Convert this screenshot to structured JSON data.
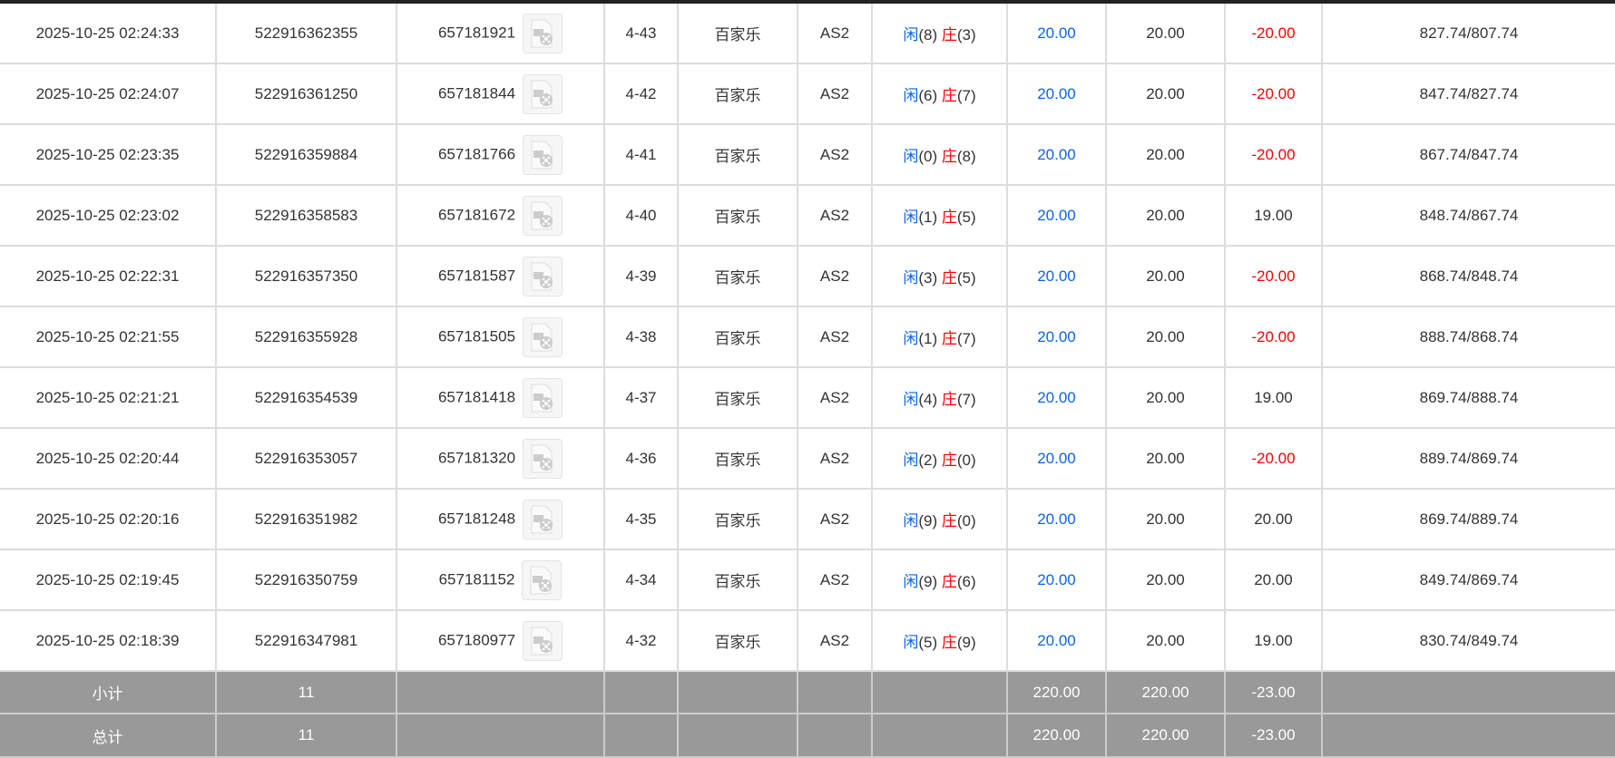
{
  "colors": {
    "player": "#0a64f0",
    "banker": "#ff0000",
    "summary_bg": "#999999"
  },
  "rows": [
    {
      "time": "2025-10-25 02:24:33",
      "bet_id": "522916362355",
      "round_id": "657181921",
      "shoe": "4-43",
      "game": "百家乐",
      "table": "AS2",
      "player_label": "闲",
      "player": "(8)",
      "banker_label": "庄",
      "banker": "(3)",
      "bet": "20.00",
      "valid": "20.00",
      "win": "-20.00",
      "balance": "827.74/807.74"
    },
    {
      "time": "2025-10-25 02:24:07",
      "bet_id": "522916361250",
      "round_id": "657181844",
      "shoe": "4-42",
      "game": "百家乐",
      "table": "AS2",
      "player_label": "闲",
      "player": "(6)",
      "banker_label": "庄",
      "banker": "(7)",
      "bet": "20.00",
      "valid": "20.00",
      "win": "-20.00",
      "balance": "847.74/827.74"
    },
    {
      "time": "2025-10-25 02:23:35",
      "bet_id": "522916359884",
      "round_id": "657181766",
      "shoe": "4-41",
      "game": "百家乐",
      "table": "AS2",
      "player_label": "闲",
      "player": "(0)",
      "banker_label": "庄",
      "banker": "(8)",
      "bet": "20.00",
      "valid": "20.00",
      "win": "-20.00",
      "balance": "867.74/847.74"
    },
    {
      "time": "2025-10-25 02:23:02",
      "bet_id": "522916358583",
      "round_id": "657181672",
      "shoe": "4-40",
      "game": "百家乐",
      "table": "AS2",
      "player_label": "闲",
      "player": "(1)",
      "banker_label": "庄",
      "banker": "(5)",
      "bet": "20.00",
      "valid": "20.00",
      "win": "19.00",
      "balance": "848.74/867.74"
    },
    {
      "time": "2025-10-25 02:22:31",
      "bet_id": "522916357350",
      "round_id": "657181587",
      "shoe": "4-39",
      "game": "百家乐",
      "table": "AS2",
      "player_label": "闲",
      "player": "(3)",
      "banker_label": "庄",
      "banker": "(5)",
      "bet": "20.00",
      "valid": "20.00",
      "win": "-20.00",
      "balance": "868.74/848.74"
    },
    {
      "time": "2025-10-25 02:21:55",
      "bet_id": "522916355928",
      "round_id": "657181505",
      "shoe": "4-38",
      "game": "百家乐",
      "table": "AS2",
      "player_label": "闲",
      "player": "(1)",
      "banker_label": "庄",
      "banker": "(7)",
      "bet": "20.00",
      "valid": "20.00",
      "win": "-20.00",
      "balance": "888.74/868.74"
    },
    {
      "time": "2025-10-25 02:21:21",
      "bet_id": "522916354539",
      "round_id": "657181418",
      "shoe": "4-37",
      "game": "百家乐",
      "table": "AS2",
      "player_label": "闲",
      "player": "(4)",
      "banker_label": "庄",
      "banker": "(7)",
      "bet": "20.00",
      "valid": "20.00",
      "win": "19.00",
      "balance": "869.74/888.74"
    },
    {
      "time": "2025-10-25 02:20:44",
      "bet_id": "522916353057",
      "round_id": "657181320",
      "shoe": "4-36",
      "game": "百家乐",
      "table": "AS2",
      "player_label": "闲",
      "player": "(2)",
      "banker_label": "庄",
      "banker": "(0)",
      "bet": "20.00",
      "valid": "20.00",
      "win": "-20.00",
      "balance": "889.74/869.74"
    },
    {
      "time": "2025-10-25 02:20:16",
      "bet_id": "522916351982",
      "round_id": "657181248",
      "shoe": "4-35",
      "game": "百家乐",
      "table": "AS2",
      "player_label": "闲",
      "player": "(9)",
      "banker_label": "庄",
      "banker": "(0)",
      "bet": "20.00",
      "valid": "20.00",
      "win": "20.00",
      "balance": "869.74/889.74"
    },
    {
      "time": "2025-10-25 02:19:45",
      "bet_id": "522916350759",
      "round_id": "657181152",
      "shoe": "4-34",
      "game": "百家乐",
      "table": "AS2",
      "player_label": "闲",
      "player": "(9)",
      "banker_label": "庄",
      "banker": "(6)",
      "bet": "20.00",
      "valid": "20.00",
      "win": "20.00",
      "balance": "849.74/869.74"
    },
    {
      "time": "2025-10-25 02:18:39",
      "bet_id": "522916347981",
      "round_id": "657180977",
      "shoe": "4-32",
      "game": "百家乐",
      "table": "AS2",
      "player_label": "闲",
      "player": "(5)",
      "banker_label": "庄",
      "banker": "(9)",
      "bet": "20.00",
      "valid": "20.00",
      "win": "19.00",
      "balance": "830.74/849.74"
    }
  ],
  "subtotal": {
    "label": "小计",
    "count": "11",
    "bet": "220.00",
    "valid": "220.00",
    "win": "-23.00"
  },
  "total": {
    "label": "总计",
    "count": "11",
    "bet": "220.00",
    "valid": "220.00",
    "win": "-23.00"
  }
}
